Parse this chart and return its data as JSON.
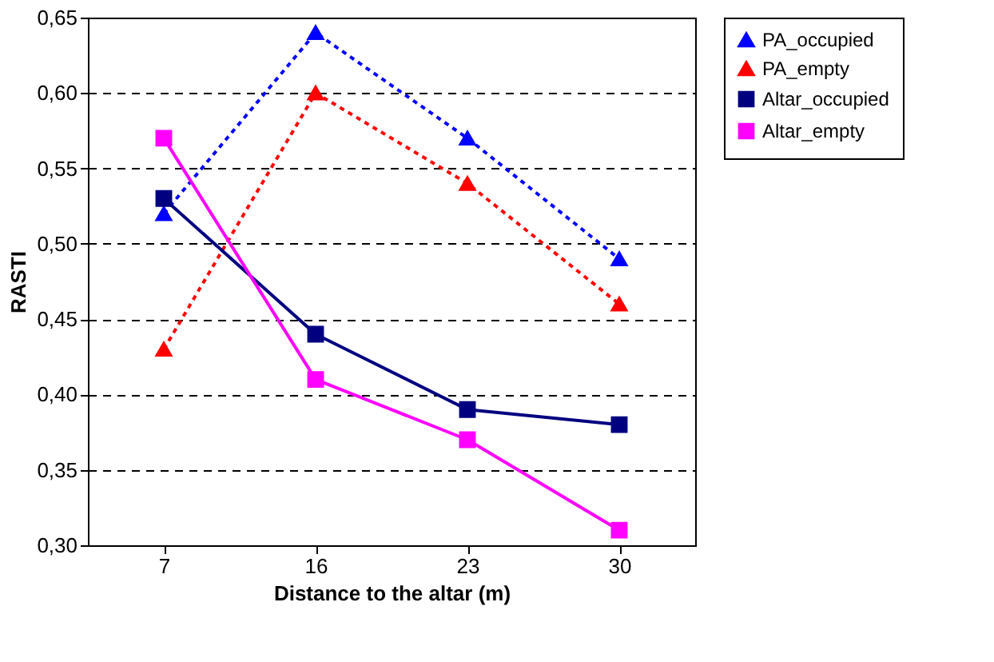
{
  "chart_data": {
    "type": "line",
    "xlabel": "Distance to the altar (m)",
    "ylabel": "RASTI",
    "categories": [
      "7",
      "16",
      "23",
      "30"
    ],
    "series": [
      {
        "name": "PA_occupied",
        "color": "#0000ff",
        "values": [
          0.52,
          0.64,
          0.57,
          0.49
        ],
        "marker": "triangle",
        "line_style": "dotted"
      },
      {
        "name": "PA_empty",
        "color": "#ff0000",
        "values": [
          0.43,
          0.6,
          0.54,
          0.46
        ],
        "marker": "triangle",
        "line_style": "dotted"
      },
      {
        "name": "Altar_occupied",
        "color": "#000080",
        "values": [
          0.53,
          0.44,
          0.39,
          0.38
        ],
        "marker": "square",
        "line_style": "solid"
      },
      {
        "name": "Altar_empty",
        "color": "#ff00ff",
        "values": [
          0.57,
          0.41,
          0.37,
          0.31
        ],
        "marker": "square",
        "line_style": "solid"
      }
    ],
    "ylim": [
      0.3,
      0.65
    ],
    "yticks": [
      {
        "value": 0.3,
        "label": "0,30"
      },
      {
        "value": 0.35,
        "label": "0,35"
      },
      {
        "value": 0.4,
        "label": "0,40"
      },
      {
        "value": 0.45,
        "label": "0,45"
      },
      {
        "value": 0.5,
        "label": "0,50"
      },
      {
        "value": 0.55,
        "label": "0,55"
      },
      {
        "value": 0.6,
        "label": "0,60"
      },
      {
        "value": 0.65,
        "label": "0,65"
      }
    ],
    "grid": "y",
    "legend": "right"
  }
}
